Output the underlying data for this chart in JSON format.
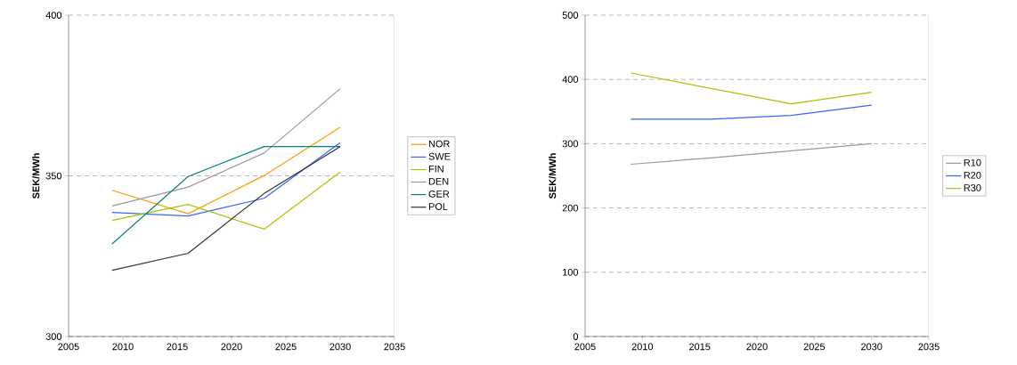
{
  "chart_data": [
    {
      "type": "line",
      "ylabel": "SEK/MWh",
      "x": [
        2009,
        2016,
        2023,
        2030
      ],
      "xlim": [
        2005,
        2035
      ],
      "xticks": [
        2005,
        2010,
        2015,
        2020,
        2025,
        2030,
        2035
      ],
      "ylim": [
        300,
        400
      ],
      "yticks": [
        300,
        350,
        400
      ],
      "grid": "y",
      "legend": "right",
      "series": [
        {
          "name": "NOR",
          "color": "#ff9900",
          "values": [
            345.5,
            338.2,
            350.1,
            365.1
          ]
        },
        {
          "name": "SWE",
          "color": "#3366ff",
          "values": [
            338.6,
            337.5,
            343.0,
            360.3
          ]
        },
        {
          "name": "FIN",
          "color": "#99cc00",
          "values": [
            336.1,
            341.1,
            333.4,
            351.2
          ]
        },
        {
          "name": "DEN",
          "color": "#999999",
          "values": [
            340.6,
            346.5,
            357.1,
            377.1
          ]
        },
        {
          "name": "GER",
          "color": "#008080",
          "values": [
            328.8,
            349.8,
            359.1,
            359.1
          ]
        },
        {
          "name": "POL",
          "color": "#333333",
          "values": [
            320.6,
            325.9,
            344.5,
            359.1
          ]
        }
      ]
    },
    {
      "type": "line",
      "ylabel": "SEK/MWh",
      "x": [
        2009,
        2016,
        2023,
        2030
      ],
      "xlim": [
        2005,
        2035
      ],
      "xticks": [
        2005,
        2010,
        2015,
        2020,
        2025,
        2030,
        2035
      ],
      "ylim": [
        0,
        500
      ],
      "yticks": [
        0,
        100,
        200,
        300,
        400,
        500
      ],
      "grid": "y",
      "legend": "right",
      "series": [
        {
          "name": "R10",
          "color": "#999999",
          "values": [
            268,
            278,
            289,
            300
          ]
        },
        {
          "name": "R20",
          "color": "#3366ff",
          "values": [
            338,
            338,
            344,
            360
          ]
        },
        {
          "name": "R30",
          "color": "#99cc00",
          "values": [
            410,
            386,
            362,
            380
          ]
        }
      ]
    }
  ]
}
